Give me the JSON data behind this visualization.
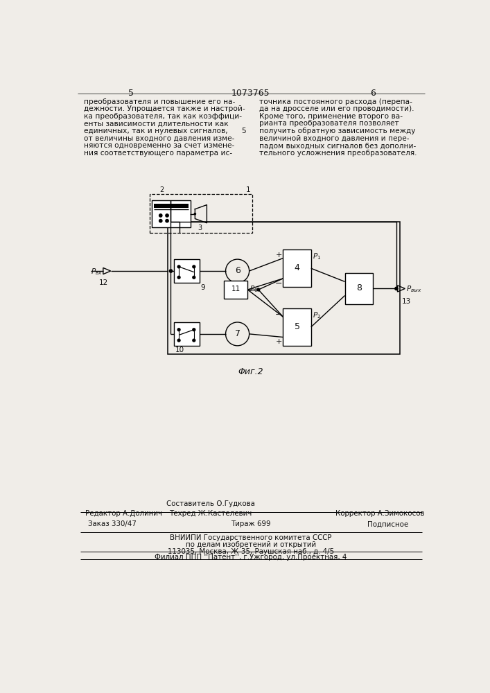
{
  "page_color": "#f0ede8",
  "header_number": "1073765",
  "page_left": "5",
  "page_right": "6",
  "col1_text": [
    "преобразователя и повышение его на-",
    "дежности. Упрощается также и настрой-",
    "ка преобразователя, так как коэффици-",
    "енты зависимости длительности как",
    "единичных, так и нулевых сигналов,",
    "от величины входного давления изме-",
    "няются одновременно за счет измене-",
    "ния соответствующего параметра ис-"
  ],
  "col2_text": [
    "точника постоянного расхода (перепа-",
    "да на дросселе или его проводимости).",
    "Кроме того, применение второго ва-",
    "рианта преобразователя позволяет",
    "получить обратную зависимость между",
    "величиной входного давления и пере-",
    "падом выходных сигналов без дополни-",
    "тельного усложнения преобразователя."
  ],
  "col2_line5_label": "5",
  "fig_caption": "Φиг.2",
  "editor_label": "Редактор А.Долинич",
  "compiler_label": "Составитель О.Гудкова",
  "techred_label": "Техред Ж.Кастелевич",
  "corrector_label": "Корректор А.Зимокосов",
  "order_label": "Заказ 330/47",
  "tirazh_label": "Тираж 699",
  "podpis_label": "Подписное",
  "vniip1": "ВНИИПИ Государственного комитета СССР",
  "vniip2": "по делам изобретений и открытий",
  "vniip3": "113035, Москва, Ж-35, Раушская наб., д. 4/5",
  "filial": "Филиал ППП ''Патент'', г.Ужгород, ул.Проектная, 4"
}
